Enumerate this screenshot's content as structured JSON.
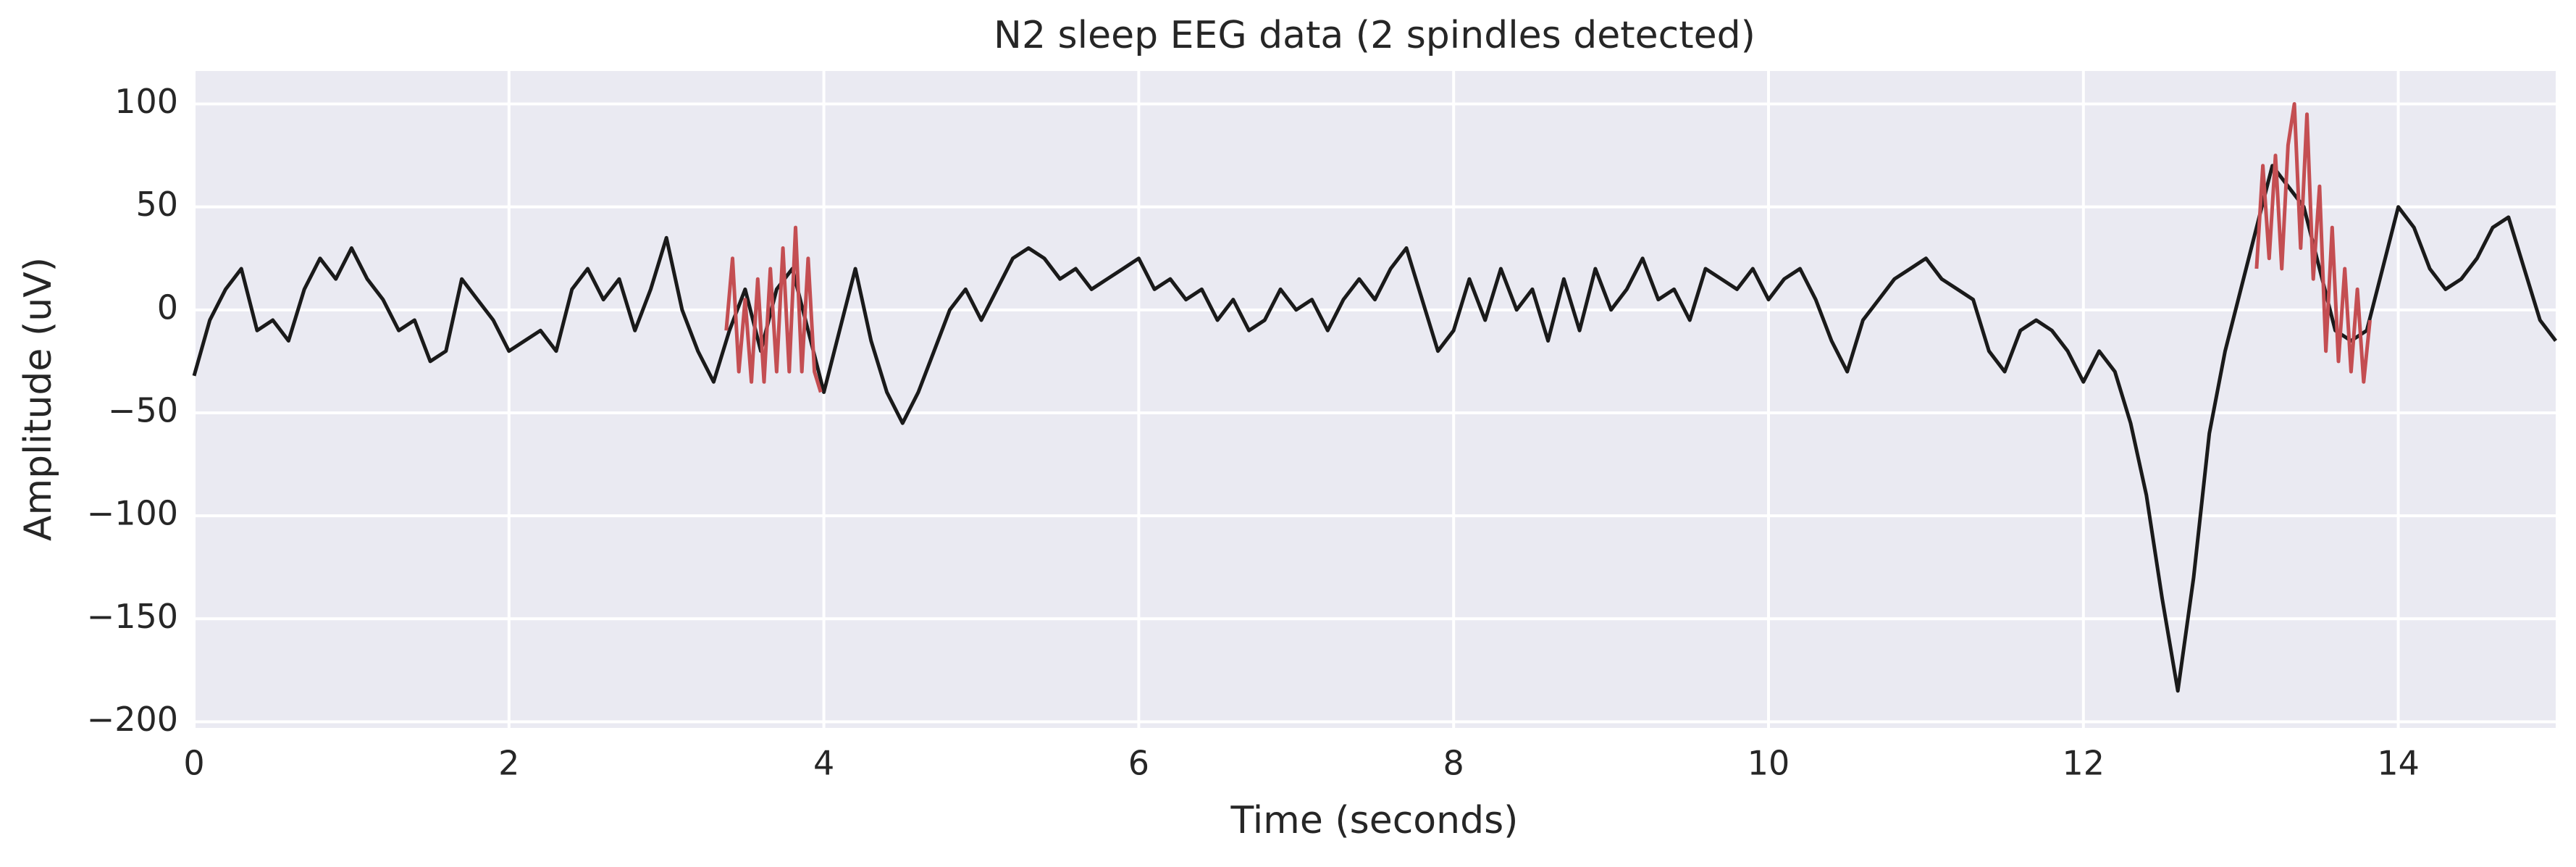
{
  "chart_data": {
    "type": "line",
    "title": "N2 sleep EEG data (2 spindles detected)",
    "xlabel": "Time (seconds)",
    "ylabel": "Amplitude (uV)",
    "x": [
      0,
      0.1,
      0.2,
      0.3,
      0.4,
      0.5,
      0.6,
      0.7,
      0.8,
      0.9,
      1,
      1.1,
      1.2,
      1.3,
      1.4,
      1.5,
      1.6,
      1.7,
      1.8,
      1.9,
      2,
      2.1,
      2.2,
      2.3,
      2.4,
      2.5,
      2.6,
      2.7,
      2.8,
      2.9,
      3,
      3.1,
      3.2,
      3.3,
      3.4,
      3.5,
      3.6,
      3.7,
      3.8,
      3.9,
      4,
      4.1,
      4.2,
      4.3,
      4.4,
      4.5,
      4.6,
      4.7,
      4.8,
      4.9,
      5,
      5.1,
      5.2,
      5.3,
      5.4,
      5.5,
      5.6,
      5.7,
      5.8,
      5.9,
      6,
      6.1,
      6.2,
      6.3,
      6.4,
      6.5,
      6.6,
      6.7,
      6.8,
      6.9,
      7,
      7.1,
      7.2,
      7.3,
      7.4,
      7.5,
      7.6,
      7.7,
      7.8,
      7.9,
      8,
      8.1,
      8.2,
      8.3,
      8.4,
      8.5,
      8.6,
      8.7,
      8.8,
      8.9,
      9,
      9.1,
      9.2,
      9.3,
      9.4,
      9.5,
      9.6,
      9.7,
      9.8,
      9.9,
      10,
      10.1,
      10.2,
      10.3,
      10.4,
      10.5,
      10.6,
      10.7,
      10.8,
      10.9,
      11,
      11.1,
      11.2,
      11.3,
      11.4,
      11.5,
      11.6,
      11.7,
      11.8,
      11.9,
      12,
      12.1,
      12.2,
      12.3,
      12.4,
      12.5,
      12.6,
      12.7,
      12.8,
      12.9,
      13,
      13.1,
      13.2,
      13.3,
      13.4,
      13.5,
      13.6,
      13.7,
      13.8,
      13.9,
      14,
      14.1,
      14.2,
      14.3,
      14.4,
      14.5,
      14.6,
      14.7,
      14.8,
      14.9,
      15
    ],
    "series": [
      {
        "color": "#1a1a1a",
        "values": [
          -32,
          -5,
          10,
          20,
          -10,
          -5,
          -15,
          10,
          25,
          15,
          30,
          15,
          5,
          -10,
          -5,
          -25,
          -20,
          15,
          5,
          -5,
          -20,
          -15,
          -10,
          -20,
          10,
          20,
          5,
          15,
          -10,
          10,
          35,
          0,
          -20,
          -35,
          -10,
          10,
          -20,
          10,
          20,
          -10,
          -40,
          -10,
          20,
          -15,
          -40,
          -55,
          -40,
          -20,
          0,
          10,
          -5,
          10,
          25,
          30,
          25,
          15,
          20,
          10,
          15,
          20,
          25,
          10,
          15,
          5,
          10,
          -5,
          5,
          -10,
          -5,
          10,
          0,
          5,
          -10,
          5,
          15,
          5,
          20,
          30,
          5,
          -20,
          -10,
          15,
          -5,
          20,
          0,
          10,
          -15,
          15,
          -10,
          20,
          0,
          10,
          25,
          5,
          10,
          -5,
          20,
          15,
          10,
          20,
          5,
          15,
          20,
          5,
          -15,
          -30,
          -5,
          5,
          15,
          20,
          25,
          15,
          10,
          5,
          -20,
          -30,
          -10,
          -5,
          -10,
          -20,
          -35,
          -20,
          -30,
          -55,
          -90,
          -140,
          -185,
          -130,
          -60,
          -20,
          10,
          40,
          70,
          60,
          50,
          20,
          -10,
          -15,
          -10,
          20,
          50,
          40,
          20,
          10,
          15,
          25,
          40,
          45,
          20,
          -5,
          -15
        ]
      },
      {
        "color": "#c44e52",
        "x": [
          3.38,
          3.42,
          3.46,
          3.5,
          3.54,
          3.58,
          3.62,
          3.66,
          3.7,
          3.74,
          3.78,
          3.82,
          3.86,
          3.9,
          3.94,
          3.98,
          8,
          13.1,
          13.14,
          13.18,
          13.22,
          13.26,
          13.3,
          13.34,
          13.38,
          13.42,
          13.46,
          13.5,
          13.54,
          13.58,
          13.62,
          13.66,
          13.7,
          13.74,
          13.78,
          13.82
        ],
        "values": [
          -10,
          25,
          -30,
          5,
          -35,
          15,
          -35,
          20,
          -30,
          30,
          -30,
          40,
          -30,
          25,
          -30,
          -40,
          null,
          20,
          70,
          25,
          75,
          20,
          80,
          100,
          30,
          95,
          15,
          60,
          -20,
          40,
          -25,
          20,
          -30,
          10,
          -35,
          -5
        ]
      }
    ],
    "xlim": [
      0,
      15
    ],
    "xticks": [
      0,
      2,
      4,
      6,
      8,
      10,
      12,
      14
    ],
    "ylim": [
      -203,
      116
    ],
    "yticks": [
      {
        "value": -200,
        "label": "−200"
      },
      {
        "value": -150,
        "label": "−150"
      },
      {
        "value": -100,
        "label": "−100"
      },
      {
        "value": -50,
        "label": "−50"
      },
      0,
      50,
      100
    ],
    "grid": true
  }
}
